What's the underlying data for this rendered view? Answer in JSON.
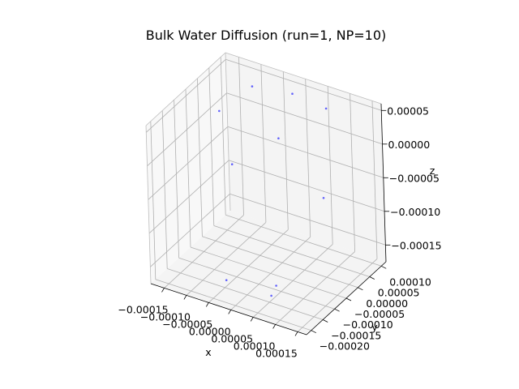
{
  "chart_data": {
    "type": "scatter",
    "projection": "3d",
    "title": "Bulk Water Diffusion (run=1, NP=10)",
    "xlabel": "x",
    "ylabel": "y",
    "zlabel": "z",
    "marker_color": "#3333ff",
    "xlim": [
      -0.00018,
      0.00017
    ],
    "ylim": [
      -0.00022,
      0.00012
    ],
    "zlim": [
      -0.000175,
      6e-05
    ],
    "xticks": [
      {
        "value": -0.00015,
        "label": "−0.00015"
      },
      {
        "value": -0.0001,
        "label": "−0.00010"
      },
      {
        "value": -5e-05,
        "label": "−0.00005"
      },
      {
        "value": 0.0,
        "label": "0.00000"
      },
      {
        "value": 5e-05,
        "label": "0.00005"
      },
      {
        "value": 0.0001,
        "label": "0.00010"
      },
      {
        "value": 0.00015,
        "label": "0.00015"
      }
    ],
    "yticks": [
      {
        "value": -0.0002,
        "label": "−0.00020"
      },
      {
        "value": -0.00015,
        "label": "−0.00015"
      },
      {
        "value": -0.0001,
        "label": "−0.00010"
      },
      {
        "value": -5e-05,
        "label": "−0.00005"
      },
      {
        "value": 0.0,
        "label": "0.00000"
      },
      {
        "value": 5e-05,
        "label": "0.00005"
      },
      {
        "value": 0.0001,
        "label": "0.00010"
      }
    ],
    "zticks": [
      {
        "value": -0.00015,
        "label": "−0.00015"
      },
      {
        "value": -0.0001,
        "label": "−0.00010"
      },
      {
        "value": -5e-05,
        "label": "−0.00005"
      },
      {
        "value": 0.0,
        "label": "0.00000"
      },
      {
        "value": 5e-05,
        "label": "0.00005"
      }
    ],
    "points": [
      {
        "x": -0.00016,
        "y": 5e-05,
        "z": 0.0
      },
      {
        "x": -0.0001,
        "y": 8e-05,
        "z": 4e-05
      },
      {
        "x": -2e-05,
        "y": 0.0001,
        "z": 4e-05
      },
      {
        "x": 5e-05,
        "y": 0.00011,
        "z": 3e-05
      },
      {
        "x": 0.0,
        "y": 0.0,
        "z": 1e-05
      },
      {
        "x": -8e-05,
        "y": -5e-05,
        "z": -3e-05
      },
      {
        "x": 0.00012,
        "y": -4e-05,
        "z": -4e-05
      },
      {
        "x": -3e-05,
        "y": -0.00018,
        "z": -0.00015
      },
      {
        "x": 5e-05,
        "y": -0.00012,
        "z": -0.00016
      },
      {
        "x": 6e-05,
        "y": -0.00016,
        "z": -0.00016
      }
    ]
  }
}
